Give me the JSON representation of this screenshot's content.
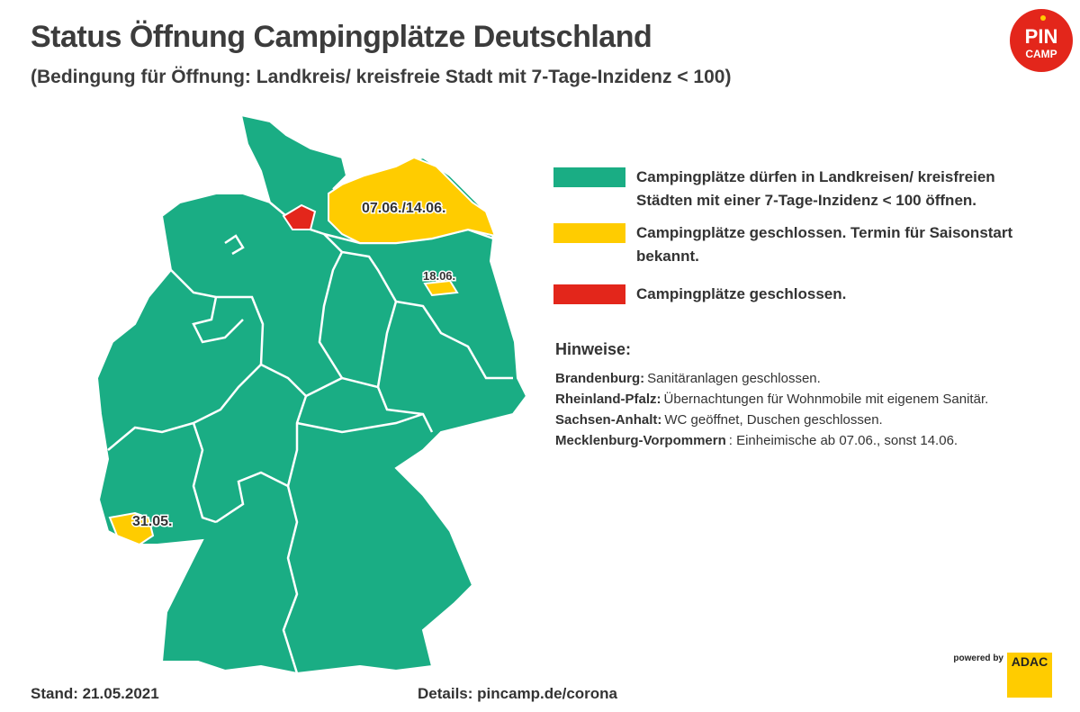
{
  "header": {
    "title": "Status Öffnung Campingplätze Deutschland",
    "subtitle": "(Bedingung für Öffnung: Landkreis/ kreisfreie Stadt mit 7-Tage-Inzidenz < 100)"
  },
  "logo": {
    "line1": "PIN",
    "line2": "CAMP"
  },
  "map": {
    "labels": [
      "07.06./14.06.",
      "18.06.",
      "31.05."
    ]
  },
  "legend": [
    {
      "color": "#1aad84",
      "text": "Campingplätze dürfen in Landkreisen/ kreisfreien Städten mit einer 7-Tage-Inzidenz < 100 öffnen."
    },
    {
      "color": "#ffcc00",
      "text": "Campingplätze geschlossen. Termin für Saisonstart bekannt."
    },
    {
      "color": "#e3261b",
      "text": "Campingplätze geschlossen."
    }
  ],
  "notes": {
    "title": "Hinweise:",
    "items": [
      {
        "label": "Brandenburg:",
        "text": "Sanitäranlagen geschlossen."
      },
      {
        "label": "Rheinland-Pfalz:",
        "text": "Übernachtungen für Wohnmobile mit eigenem Sanitär."
      },
      {
        "label": "Sachsen-Anhalt:",
        "text": "WC geöffnet, Duschen geschlossen."
      },
      {
        "label": "Mecklenburg-Vorpommern",
        "text": ": Einheimische ab 07.06., sonst 14.06."
      }
    ]
  },
  "footer": {
    "date": "Stand: 21.05.2021",
    "details": "Details: pincamp.de/corona"
  },
  "sponsor": {
    "powered_by": "powered by",
    "brand": "ADAC"
  }
}
